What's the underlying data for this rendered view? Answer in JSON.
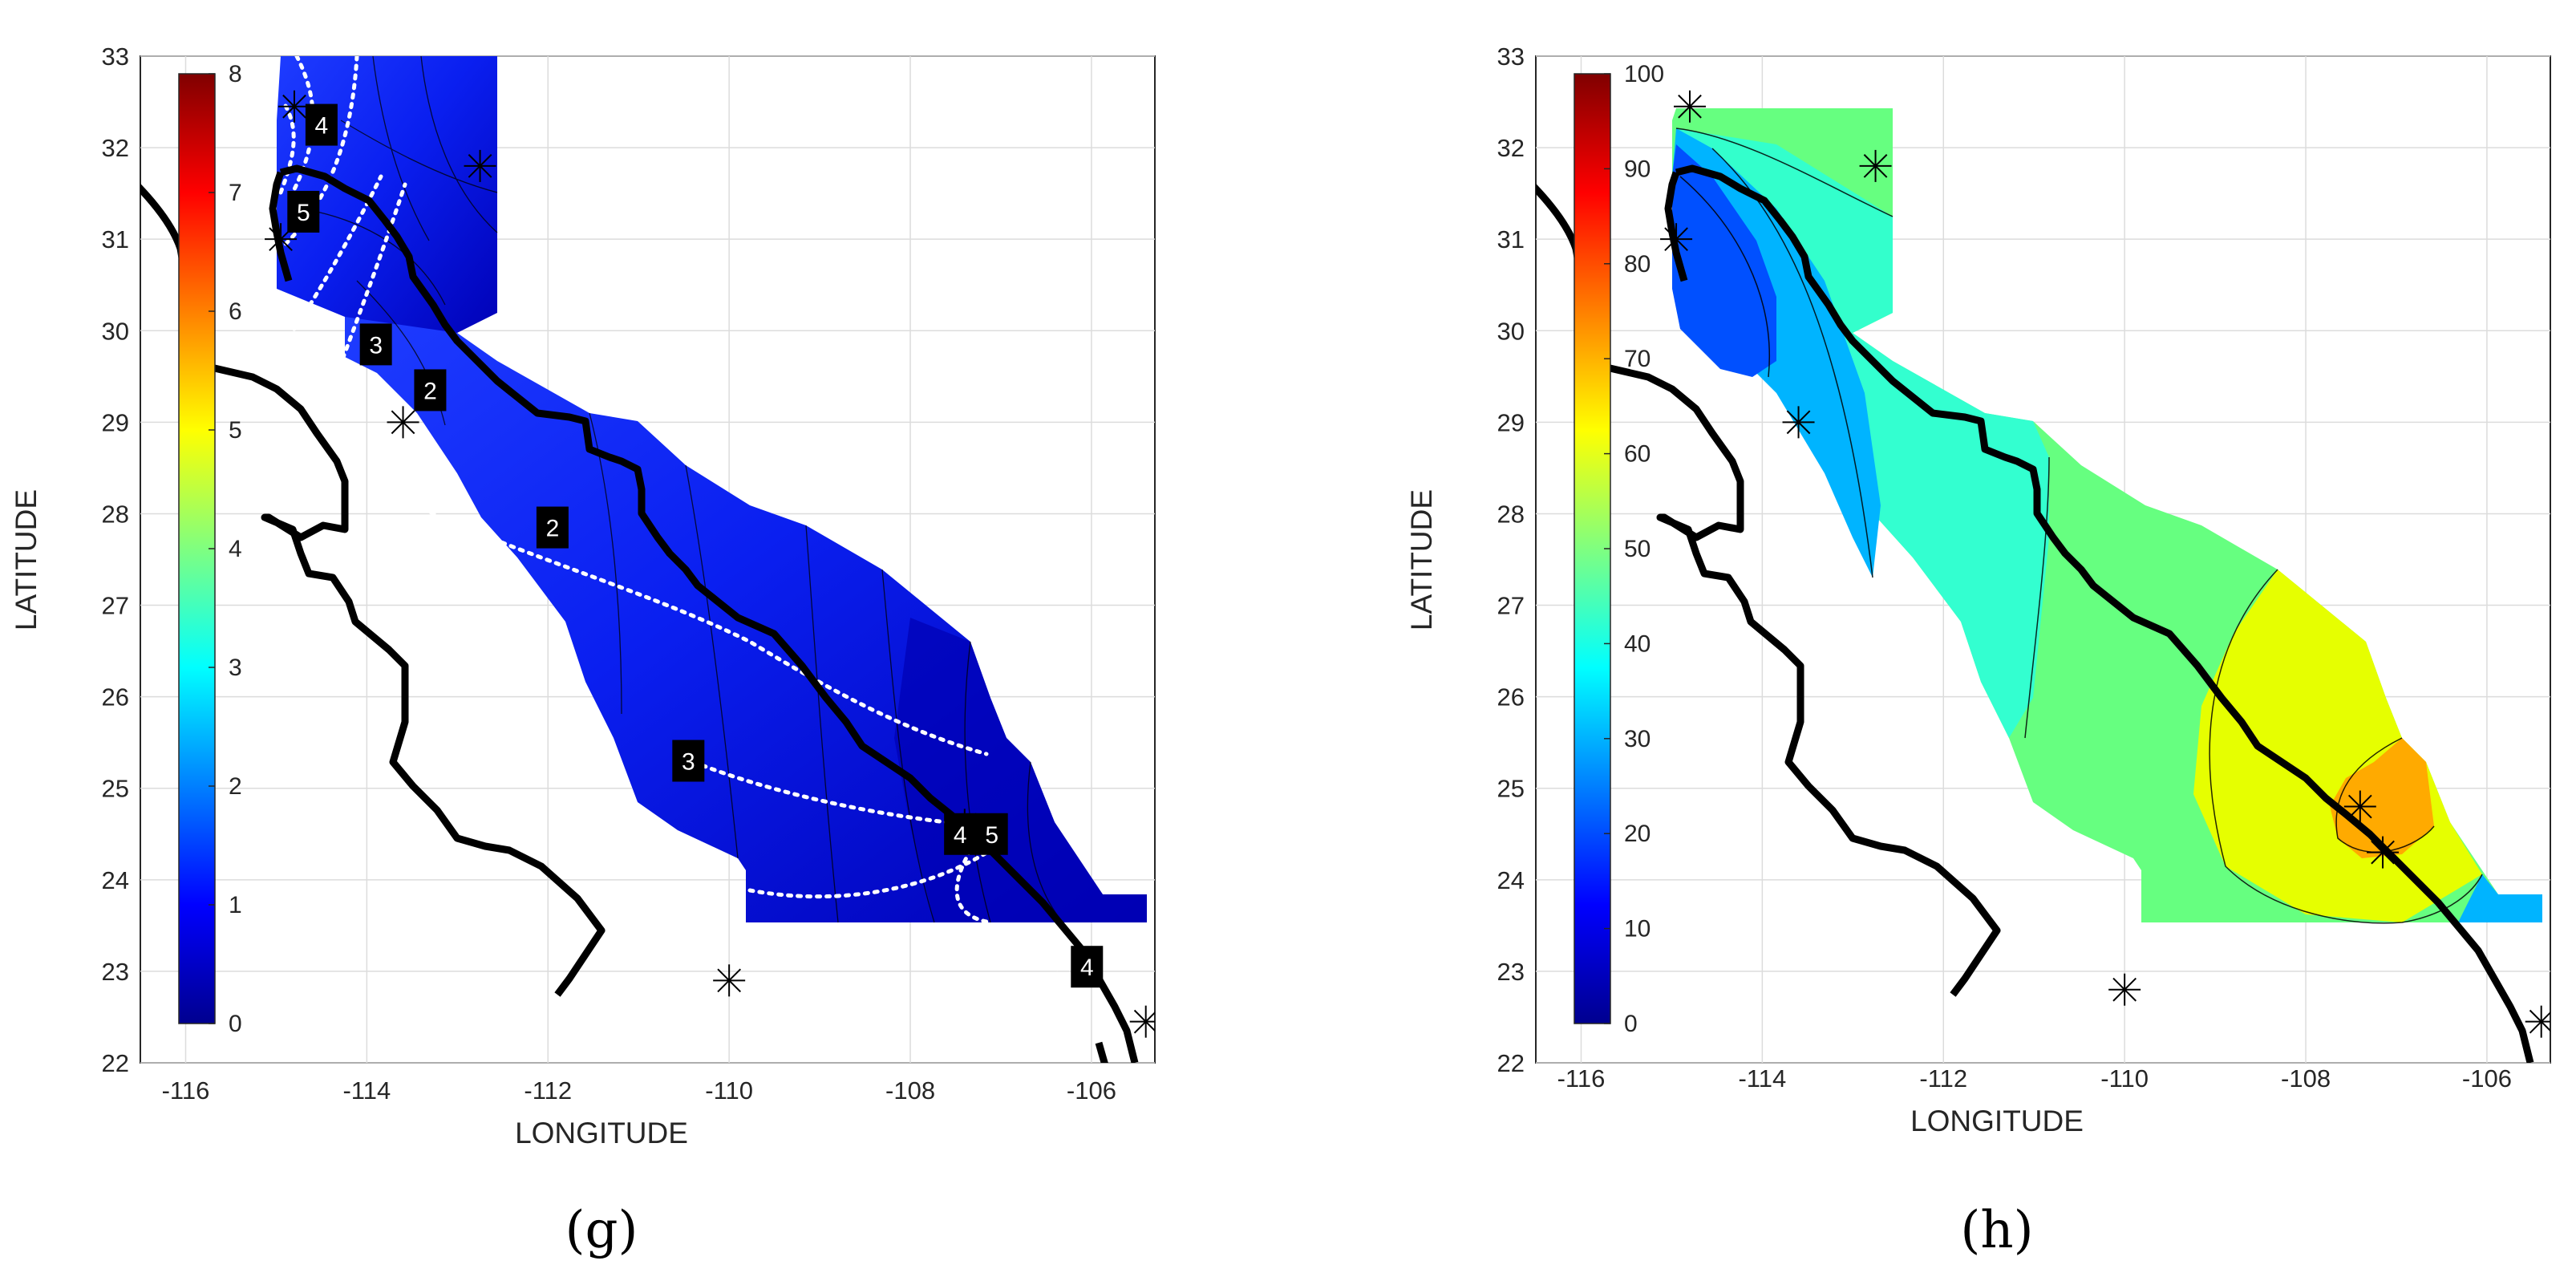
{
  "colors": {
    "background": "#ffffff",
    "coastline": "#000000",
    "contour_dotted": "#ffffff",
    "grid": "#dcdcdc"
  },
  "axes_common": {
    "xlabel": "LONGITUDE",
    "ylabel": "LATITUDE",
    "x_ticks": [
      "-116",
      "-114",
      "-112",
      "-110",
      "-108",
      "-106"
    ],
    "y_ticks": [
      "22",
      "23",
      "24",
      "25",
      "26",
      "27",
      "28",
      "29",
      "30",
      "31",
      "32",
      "33"
    ]
  },
  "panels": [
    {
      "id": "g",
      "label": "(g)",
      "colorbar": {
        "colormap": "jet",
        "range": [
          0,
          8
        ],
        "ticks": [
          "0",
          "1",
          "2",
          "3",
          "4",
          "5",
          "6",
          "7",
          "8"
        ]
      },
      "contour_labels": [
        "4",
        "5",
        "3",
        "2",
        "2",
        "3",
        "4",
        "5",
        "4"
      ]
    },
    {
      "id": "h",
      "label": "(h)",
      "colorbar": {
        "colormap": "jet",
        "range": [
          0,
          100
        ],
        "ticks": [
          "0",
          "10",
          "20",
          "30",
          "40",
          "50",
          "60",
          "70",
          "80",
          "90",
          "100"
        ]
      }
    }
  ],
  "chart_data": [
    {
      "type": "heatmap",
      "title": "",
      "xlabel": "LONGITUDE",
      "ylabel": "LATITUDE",
      "xlim": [
        -116.5,
        -105.3
      ],
      "ylim": [
        22,
        33
      ],
      "colorbar_range": [
        0,
        8
      ],
      "station_markers": [
        [
          -114.8,
          32.45
        ],
        [
          -112.75,
          31.8
        ],
        [
          -114.95,
          31.0
        ],
        [
          -113.6,
          29.0
        ],
        [
          -110.0,
          22.9
        ],
        [
          -107.4,
          24.6
        ],
        [
          -105.4,
          22.45
        ]
      ],
      "contour_labels": [
        {
          "text": "4",
          "x": -114.5,
          "y": 32.25
        },
        {
          "text": "5",
          "x": -114.7,
          "y": 31.3
        },
        {
          "text": "3",
          "x": -113.9,
          "y": 29.85
        },
        {
          "text": "2",
          "x": -113.3,
          "y": 29.35
        },
        {
          "text": "2",
          "x": -111.95,
          "y": 27.85
        },
        {
          "text": "3",
          "x": -110.45,
          "y": 25.3
        },
        {
          "text": "4",
          "x": -107.45,
          "y": 24.5
        },
        {
          "text": "5",
          "x": -107.1,
          "y": 24.5
        },
        {
          "text": "4",
          "x": -106.05,
          "y": 23.05
        }
      ],
      "grid": true
    },
    {
      "type": "heatmap",
      "title": "",
      "xlabel": "LONGITUDE",
      "ylabel": "LATITUDE",
      "xlim": [
        -116.5,
        -105.3
      ],
      "ylim": [
        22,
        33
      ],
      "colorbar_range": [
        0,
        100
      ],
      "station_markers": [
        [
          -114.8,
          32.45
        ],
        [
          -112.75,
          31.8
        ],
        [
          -114.95,
          31.0
        ],
        [
          -113.6,
          29.0
        ],
        [
          -110.0,
          22.8
        ],
        [
          -107.4,
          24.8
        ],
        [
          -107.15,
          24.3
        ],
        [
          -105.4,
          22.45
        ]
      ],
      "grid": true
    }
  ]
}
